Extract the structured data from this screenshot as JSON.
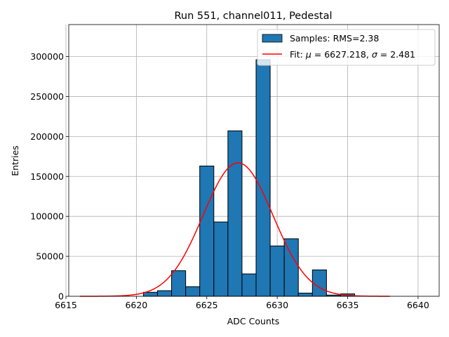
{
  "chart_data": {
    "type": "bar",
    "title": "Run 551, channel011, Pedestal",
    "xlabel": "ADC Counts",
    "ylabel": "Entries",
    "xlim": [
      6615.2,
      6641.5
    ],
    "ylim": [
      0,
      340000
    ],
    "xticks": [
      6615,
      6620,
      6625,
      6630,
      6635,
      6640
    ],
    "yticks": [
      0,
      50000,
      100000,
      150000,
      200000,
      250000,
      300000
    ],
    "grid": true,
    "legend_position": "top-right",
    "bin_width": 1,
    "histogram": {
      "name": "Samples: RMS=2.38",
      "color": "#1f77b4",
      "bin_centers": [
        6621,
        6622,
        6623,
        6624,
        6625,
        6626,
        6627,
        6628,
        6629,
        6630,
        6631,
        6632,
        6633,
        6634,
        6635
      ],
      "values": [
        5000,
        7000,
        32000,
        12000,
        163000,
        93000,
        207000,
        28000,
        296000,
        63000,
        72000,
        4000,
        33000,
        1500,
        3000
      ]
    },
    "fit": {
      "name_prefix": "Fit: ",
      "mu_symbol": "μ",
      "sigma_symbol": "σ",
      "mu": 6627.218,
      "sigma": 2.481,
      "amplitude": 167000,
      "x_range": [
        6616,
        6638
      ],
      "color": "#ff0000",
      "mu_text": "6627.218",
      "sigma_text": "2.481"
    }
  }
}
